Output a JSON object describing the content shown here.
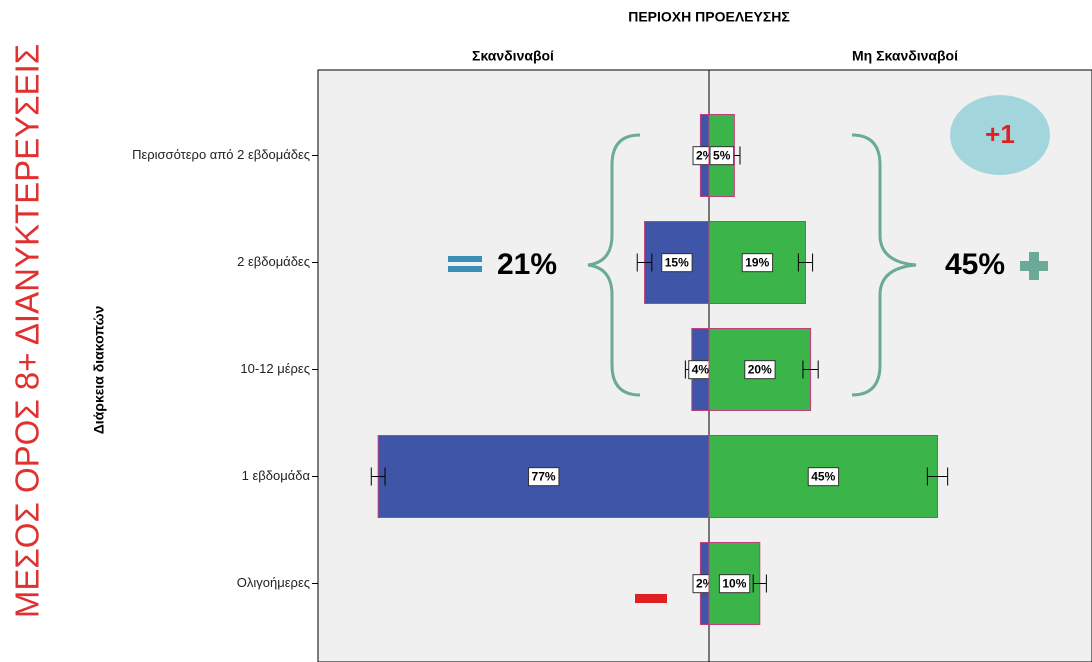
{
  "chart_data": {
    "type": "bar",
    "orientation": "horizontal",
    "headline": "ΜΕΣΟΣ ΟΡΟΣ 8+ ΔΙΑΝΥΚΤΕΡΕΥΣΕΙΣ",
    "title": "ΠΕΡΙΟΧΗ ΠΡΟΕΛΕΥΣΗΣ",
    "y_label": "Διάρκεια διακοπών",
    "categories": [
      "Περισσότερο από 2 εβδομάδες",
      "2 εβδομάδες",
      "10-12 μέρες",
      "1 εβδομάδα",
      "Ολιγοήμερες"
    ],
    "series": [
      {
        "name": "Σκανδιναβοί",
        "color": "#3f55a8",
        "values": [
          2,
          15,
          4,
          77,
          2
        ],
        "value_labels": [
          "2%",
          "15%",
          "4%",
          "77%",
          "2%"
        ],
        "errors": [
          1.5,
          1.7,
          1.5,
          1.6,
          1.5
        ],
        "xlim": [
          0,
          91
        ]
      },
      {
        "name": "Μη Σκανδιναβοί",
        "color": "#3bb54a",
        "values": [
          5,
          19,
          20,
          45,
          10
        ],
        "value_labels": [
          "5%",
          "19%",
          "20%",
          "45%",
          "10%"
        ],
        "errors": [
          1.1,
          1.4,
          1.5,
          2,
          1.3
        ],
        "xlim": [
          0,
          77
        ]
      }
    ],
    "annotations": [
      "21%",
      "45%",
      "+1"
    ]
  }
}
